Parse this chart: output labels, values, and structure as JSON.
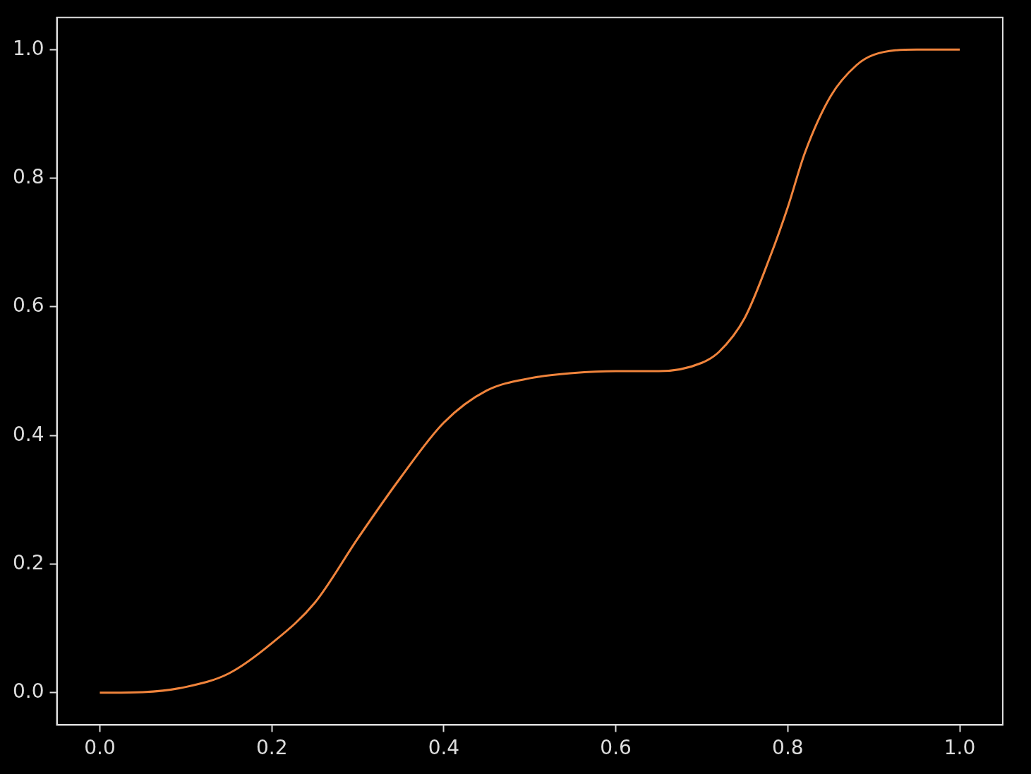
{
  "chart_data": {
    "type": "line",
    "x": [
      0,
      0.05,
      0.1,
      0.15,
      0.2,
      0.25,
      0.3,
      0.35,
      0.4,
      0.45,
      0.5,
      0.55,
      0.6,
      0.65,
      0.7,
      0.72,
      0.75,
      0.78,
      0.8,
      0.82,
      0.85,
      0.88,
      0.9,
      0.95,
      1.0
    ],
    "series": [
      {
        "color": "#f0843c",
        "values": [
          0,
          0.001,
          0.009,
          0.03,
          0.077,
          0.14,
          0.24,
          0.335,
          0.42,
          0.47,
          0.489,
          0.497,
          0.5,
          0.5,
          0.513,
          0.53,
          0.583,
          0.68,
          0.755,
          0.84,
          0.928,
          0.976,
          0.992,
          1.0,
          1.0
        ]
      }
    ],
    "xlim": [
      -0.05,
      1.05
    ],
    "ylim": [
      -0.05,
      1.05
    ],
    "xticks": [
      {
        "value": 0,
        "label": "0.0"
      },
      {
        "value": 0.2,
        "label": "0.2"
      },
      {
        "value": 0.4,
        "label": "0.4"
      },
      {
        "value": 0.6,
        "label": "0.6"
      },
      {
        "value": 0.8,
        "label": "0.8"
      },
      {
        "value": 1,
        "label": "1.0"
      }
    ],
    "yticks": [
      {
        "value": 0,
        "label": "0.0"
      },
      {
        "value": 0.2,
        "label": "0.2"
      },
      {
        "value": 0.4,
        "label": "0.4"
      },
      {
        "value": 0.6,
        "label": "0.6"
      },
      {
        "value": 0.8,
        "label": "0.8"
      },
      {
        "value": 1,
        "label": "1.0"
      }
    ],
    "grid": false,
    "legend": false,
    "marker": "none"
  }
}
